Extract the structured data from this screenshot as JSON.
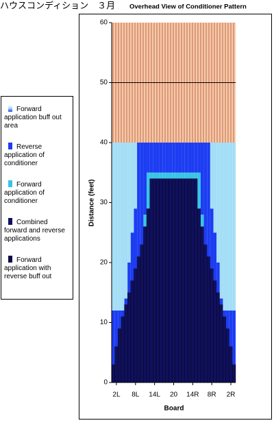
{
  "chart_data": {
    "type": "bar",
    "title_jp": "ハウスコンディション　３月",
    "title": "Overhead View of Conditioner Pattern",
    "y_label": "Distance (feet)",
    "x_label": "Board",
    "categories": [
      null,
      "2L",
      null,
      null,
      null,
      null,
      null,
      "8L",
      null,
      null,
      null,
      null,
      null,
      "14L",
      null,
      null,
      null,
      null,
      null,
      "20",
      null,
      null,
      null,
      null,
      null,
      "14R",
      null,
      null,
      null,
      null,
      null,
      "8R",
      null,
      null,
      null,
      null,
      null,
      "2R",
      null
    ],
    "stacked": true,
    "series": [
      {
        "name": "Combined forward and reverse applications",
        "color": "#10105e",
        "values": [
          3,
          6,
          9,
          11,
          13,
          15,
          17,
          19,
          21,
          23,
          26,
          29,
          34,
          34,
          34,
          34,
          34,
          34,
          34,
          34,
          34,
          34,
          34,
          34,
          34,
          34,
          34,
          29,
          26,
          23,
          21,
          19,
          17,
          15,
          13,
          11,
          9,
          6,
          3
        ]
      },
      {
        "name": "Forward application of conditioner",
        "color": "#38c4e6",
        "values": [
          0,
          0,
          0,
          0,
          0,
          0,
          0,
          0,
          0,
          0,
          2,
          6,
          1,
          1,
          1,
          1,
          1,
          1,
          1,
          1,
          1,
          1,
          1,
          1,
          1,
          1,
          1,
          6,
          2,
          0,
          0,
          0,
          0,
          0,
          0,
          0,
          0,
          0,
          0
        ]
      },
      {
        "name": "Reverse application of conditioner",
        "color": "#1d3df2",
        "values": [
          9,
          6,
          3,
          1,
          1,
          5,
          8,
          10,
          19,
          17,
          12,
          5,
          5,
          5,
          5,
          5,
          5,
          5,
          5,
          5,
          5,
          5,
          5,
          5,
          5,
          5,
          5,
          5,
          12,
          17,
          19,
          10,
          8,
          5,
          1,
          1,
          3,
          6,
          9
        ]
      },
      {
        "name": "Forward application buff out area",
        "color": "#a4def6",
        "values": [
          28,
          28,
          28,
          28,
          26,
          20,
          15,
          11,
          0,
          0,
          0,
          0,
          0,
          0,
          0,
          0,
          0,
          0,
          0,
          0,
          0,
          0,
          0,
          0,
          0,
          0,
          0,
          0,
          0,
          0,
          0,
          11,
          15,
          20,
          26,
          28,
          28,
          28,
          28
        ]
      },
      {
        "name": "Forward application with reverse buff out",
        "color": "#0a0a4a"
      }
    ],
    "pattern_length": 40,
    "reference_line": 50,
    "dry_color": "#f6c9ab",
    "ylim": [
      0,
      60
    ],
    "yticks": [
      0,
      10,
      20,
      30,
      40,
      50,
      60
    ]
  }
}
